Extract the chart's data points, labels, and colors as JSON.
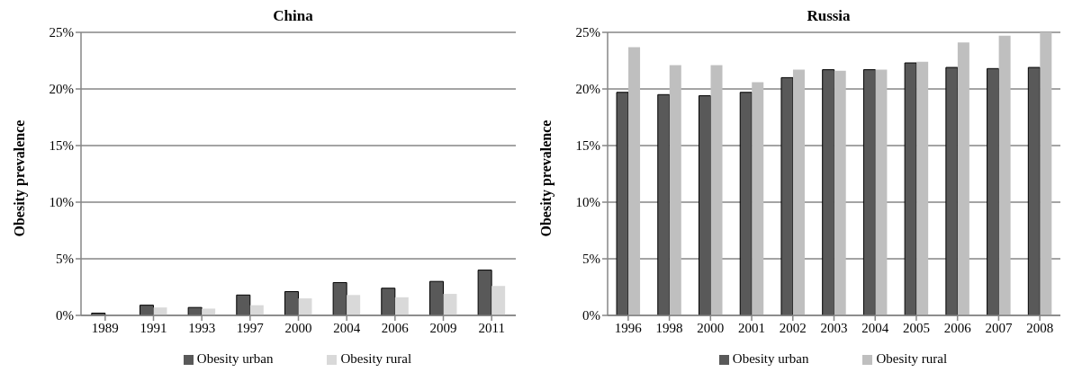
{
  "chart_data": [
    {
      "type": "bar",
      "title": "China",
      "ylabel": "Obesity prevalence",
      "categories": [
        "1989",
        "1991",
        "1993",
        "1997",
        "2000",
        "2004",
        "2006",
        "2009",
        "2011"
      ],
      "series": [
        {
          "name": "Obesity urban",
          "color": "#595959",
          "values": [
            0.2,
            0.9,
            0.7,
            1.8,
            2.1,
            2.9,
            2.4,
            3.0,
            4.0
          ]
        },
        {
          "name": "Obesity rural",
          "color": "#d9d9d9",
          "values": [
            null,
            0.7,
            0.6,
            0.9,
            1.5,
            1.8,
            1.6,
            1.9,
            2.6
          ]
        }
      ],
      "ylim": [
        0,
        25
      ],
      "yticks": [
        {
          "value": 0,
          "label": "0%"
        },
        {
          "value": 5,
          "label": "5%"
        },
        {
          "value": 10,
          "label": "10%"
        },
        {
          "value": 15,
          "label": "15%"
        },
        {
          "value": 20,
          "label": "20%"
        },
        {
          "value": 25,
          "label": "25%"
        }
      ],
      "grid": "y",
      "legend": "bottom"
    },
    {
      "type": "bar",
      "title": "Russia",
      "ylabel": "Obesity prevalence",
      "categories": [
        "1996",
        "1998",
        "2000",
        "2001",
        "2002",
        "2003",
        "2004",
        "2005",
        "2006",
        "2007",
        "2008"
      ],
      "series": [
        {
          "name": "Obesity urban",
          "color": "#595959",
          "values": [
            19.7,
            19.5,
            19.4,
            19.7,
            21.0,
            21.7,
            21.7,
            22.3,
            21.9,
            21.8,
            21.9
          ]
        },
        {
          "name": "Obesity rural",
          "color": "#bfbfbf",
          "values": [
            23.7,
            22.1,
            22.1,
            20.6,
            21.7,
            21.6,
            21.7,
            22.4,
            24.1,
            24.7,
            25.0
          ]
        }
      ],
      "ylim": [
        0,
        25
      ],
      "yticks": [
        {
          "value": 0,
          "label": "0%"
        },
        {
          "value": 5,
          "label": "5%"
        },
        {
          "value": 10,
          "label": "10%"
        },
        {
          "value": 15,
          "label": "15%"
        },
        {
          "value": 20,
          "label": "20%"
        },
        {
          "value": 25,
          "label": "25%"
        }
      ],
      "grid": "y",
      "legend": "bottom"
    }
  ]
}
